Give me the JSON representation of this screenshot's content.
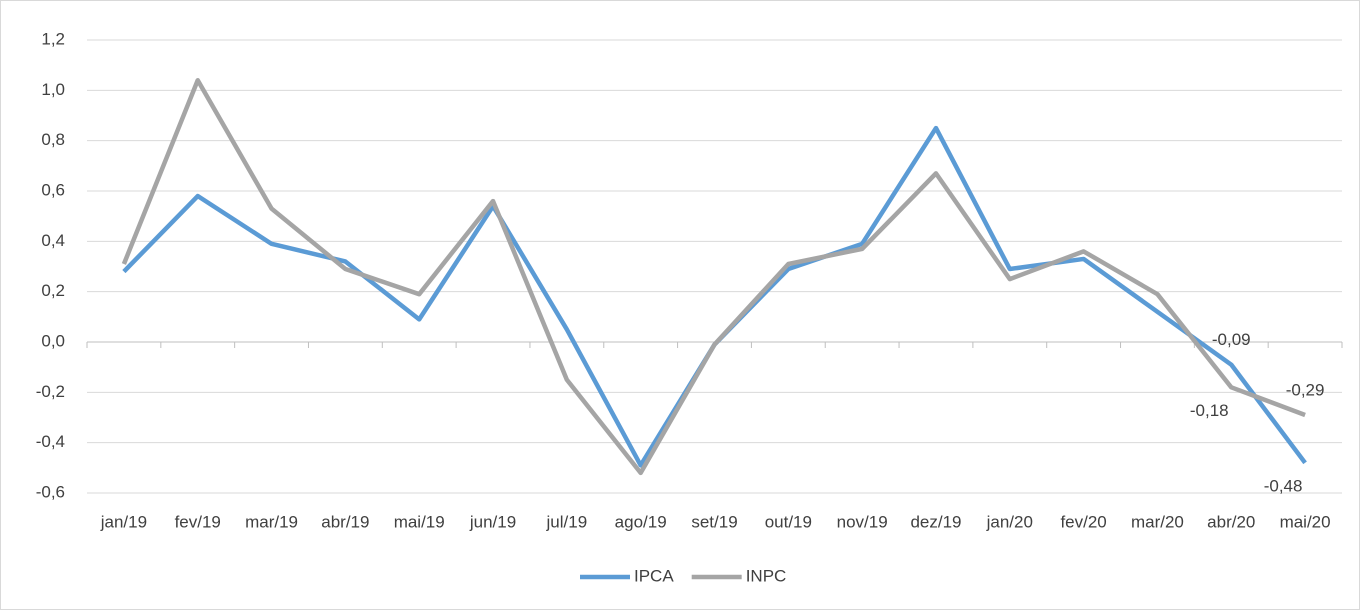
{
  "chart_data": {
    "type": "line",
    "categories": [
      "jan/19",
      "fev/19",
      "mar/19",
      "abr/19",
      "mai/19",
      "jun/19",
      "jul/19",
      "ago/19",
      "set/19",
      "out/19",
      "nov/19",
      "dez/19",
      "jan/20",
      "fev/20",
      "mar/20",
      "abr/20",
      "mai/20"
    ],
    "series": [
      {
        "name": "IPCA",
        "color": "#5b9bd5",
        "values": [
          0.28,
          0.58,
          0.39,
          0.32,
          0.09,
          0.54,
          0.05,
          -0.49,
          -0.01,
          0.29,
          0.39,
          0.85,
          0.29,
          0.33,
          0.12,
          -0.09,
          -0.48
        ],
        "value_labels": [
          null,
          null,
          null,
          null,
          null,
          null,
          null,
          null,
          null,
          null,
          null,
          null,
          null,
          null,
          null,
          "-0,09",
          "-0,48"
        ]
      },
      {
        "name": "INPC",
        "color": "#a5a5a5",
        "values": [
          0.31,
          1.04,
          0.53,
          0.29,
          0.19,
          0.56,
          -0.15,
          -0.52,
          -0.01,
          0.31,
          0.37,
          0.67,
          0.25,
          0.36,
          0.19,
          -0.18,
          -0.29
        ],
        "value_labels": [
          null,
          null,
          null,
          null,
          null,
          null,
          null,
          null,
          null,
          null,
          null,
          null,
          null,
          null,
          null,
          "-0,18",
          "-0,29"
        ]
      }
    ],
    "ylim": [
      -0.6,
      1.2
    ],
    "yticks": [
      {
        "value": -0.6,
        "label": "-0,6"
      },
      {
        "value": -0.4,
        "label": "-0,4"
      },
      {
        "value": -0.2,
        "label": "-0,2"
      },
      {
        "value": 0,
        "label": "0,0"
      },
      {
        "value": 0.2,
        "label": "0,2"
      },
      {
        "value": 0.4,
        "label": "0,4"
      },
      {
        "value": 0.6,
        "label": "0,6"
      },
      {
        "value": 0.8,
        "label": "0,8"
      },
      {
        "value": 1.0,
        "label": "1,0"
      },
      {
        "value": 1.2,
        "label": "1,2"
      }
    ],
    "grid": true,
    "legend": "bottom"
  }
}
